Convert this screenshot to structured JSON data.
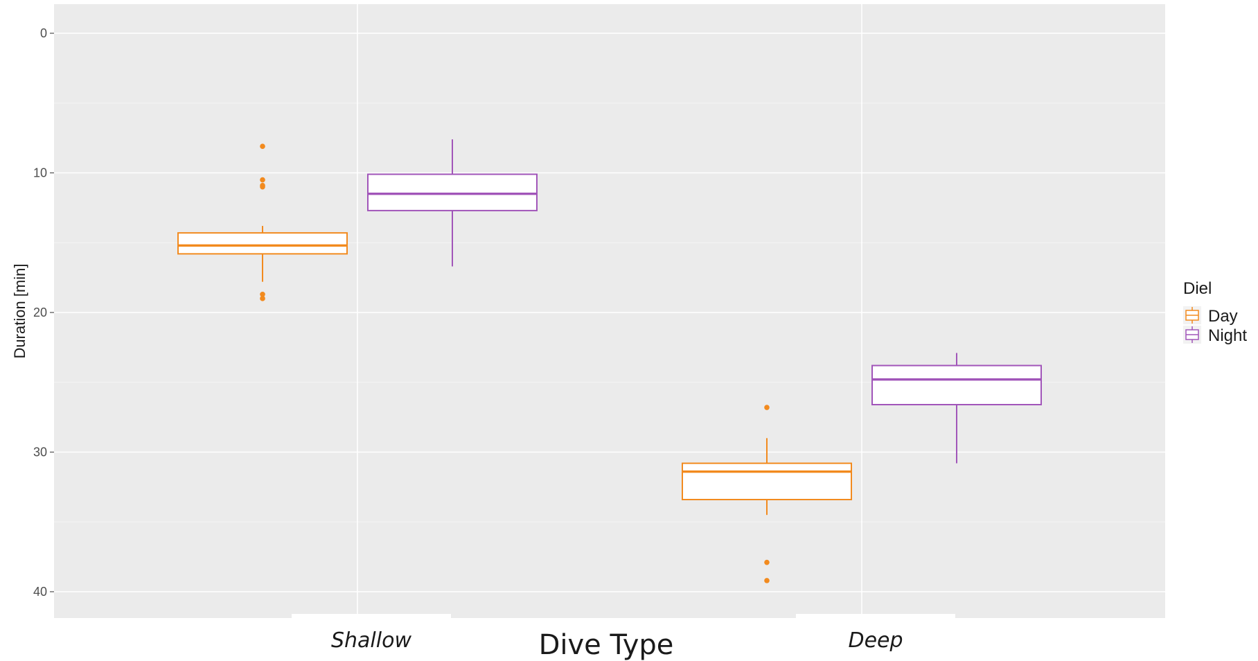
{
  "chart_data": {
    "type": "box",
    "title": "",
    "xlabel": "Dive Type",
    "ylabel": "Duration [min]",
    "categories": [
      "Shallow",
      "Deep"
    ],
    "y_reversed": true,
    "ylim": [
      -2,
      42
    ],
    "yticks": [
      0,
      10,
      20,
      30,
      40
    ],
    "grid": true,
    "legend": {
      "title": "Diel",
      "placement": "right",
      "entries": [
        "Day",
        "Night"
      ]
    },
    "series": [
      {
        "name": "Day",
        "color": "#f28a1e",
        "boxes": [
          {
            "category": "Shallow",
            "whisker_low": 13.8,
            "q1": 14.3,
            "median": 15.2,
            "q3": 15.8,
            "whisker_high": 17.8,
            "outliers": [
              8.1,
              10.5,
              10.9,
              11.0,
              18.7,
              19.0
            ]
          },
          {
            "category": "Deep",
            "whisker_low": 29.0,
            "q1": 30.8,
            "median": 31.4,
            "q3": 33.4,
            "whisker_high": 34.5,
            "outliers": [
              26.8,
              37.9,
              39.2
            ]
          }
        ]
      },
      {
        "name": "Night",
        "color": "#a155b9",
        "boxes": [
          {
            "category": "Shallow",
            "whisker_low": 7.6,
            "q1": 10.1,
            "median": 11.5,
            "q3": 12.7,
            "whisker_high": 16.7,
            "outliers": []
          },
          {
            "category": "Deep",
            "whisker_low": 22.9,
            "q1": 23.8,
            "median": 24.8,
            "q3": 26.6,
            "whisker_high": 30.8,
            "outliers": []
          }
        ]
      }
    ]
  }
}
